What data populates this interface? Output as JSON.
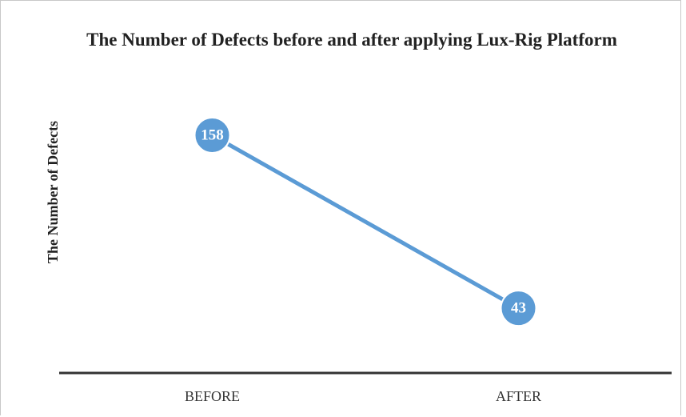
{
  "chart_data": {
    "type": "line",
    "title": "The Number of Defects before and after applying Lux-Rig Platform",
    "ylabel": "The Number of Defects",
    "categories": [
      "BEFORE",
      "AFTER"
    ],
    "values": [
      158,
      43
    ],
    "color": "#5b9bd5",
    "ylim": [
      0,
      200
    ]
  }
}
